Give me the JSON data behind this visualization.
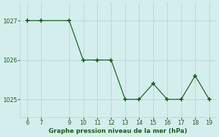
{
  "x": [
    6,
    7,
    9,
    10,
    11,
    12,
    13,
    14,
    15,
    16,
    17,
    18,
    19
  ],
  "y": [
    1027.0,
    1027.0,
    1027.0,
    1026.0,
    1026.0,
    1026.0,
    1025.0,
    1025.0,
    1025.4,
    1025.0,
    1025.0,
    1025.6,
    1025.0
  ],
  "line_color": "#1a5c1a",
  "marker": "+",
  "background_color": "#d4eeed",
  "grid_color": "#b8d8d8",
  "xlabel": "Graphe pression niveau de la mer (hPa)",
  "xlabel_color": "#1a5c1a",
  "tick_color": "#1a5c1a",
  "xlim": [
    5.5,
    19.5
  ],
  "ylim": [
    1024.55,
    1027.45
  ],
  "yticks": [
    1025,
    1026,
    1027
  ],
  "xticks": [
    6,
    7,
    9,
    10,
    11,
    12,
    13,
    14,
    15,
    16,
    17,
    18,
    19
  ],
  "figsize": [
    3.2,
    2.0
  ],
  "dpi": 100
}
